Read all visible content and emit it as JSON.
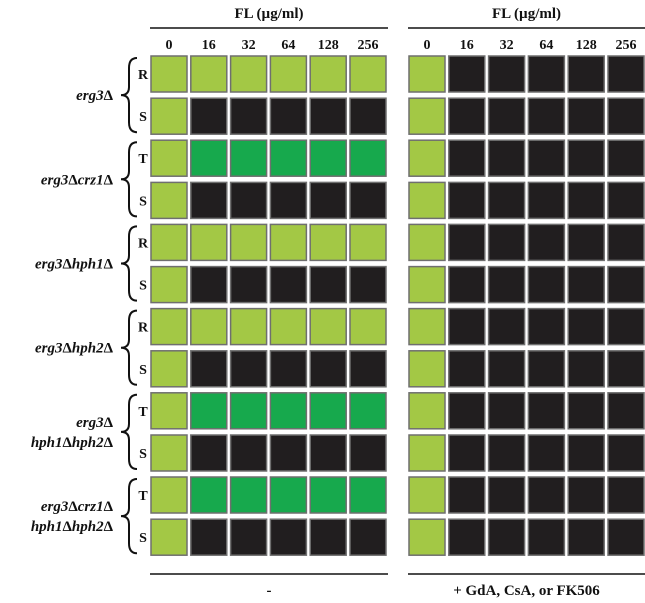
{
  "panels": [
    {
      "header": "FL (µg/ml)",
      "footer": "-"
    },
    {
      "header": "FL (µg/ml)",
      "footer": "+ GdA, CsA, or FK506"
    }
  ],
  "concentrations": [
    "0",
    "16",
    "32",
    "64",
    "128",
    "256"
  ],
  "colors": {
    "light_green": "#a3c845",
    "bright_green": "#17a94d",
    "black": "#211e1f",
    "border": "#6f6f6f"
  },
  "strains": [
    {
      "lines": [
        [
          {
            "t": "erg3",
            "i": true
          },
          {
            "t": "Δ",
            "i": false
          }
        ]
      ],
      "rows": [
        {
          "label": "R",
          "left": [
            "light_green",
            "light_green",
            "light_green",
            "light_green",
            "light_green",
            "light_green"
          ],
          "right": [
            "light_green",
            "black",
            "black",
            "black",
            "black",
            "black"
          ]
        },
        {
          "label": "S",
          "left": [
            "light_green",
            "black",
            "black",
            "black",
            "black",
            "black"
          ],
          "right": [
            "light_green",
            "black",
            "black",
            "black",
            "black",
            "black"
          ]
        }
      ]
    },
    {
      "lines": [
        [
          {
            "t": "erg3",
            "i": true
          },
          {
            "t": "Δ",
            "i": false
          },
          {
            "t": "crz1",
            "i": true
          },
          {
            "t": "Δ",
            "i": false
          }
        ]
      ],
      "rows": [
        {
          "label": "T",
          "left": [
            "light_green",
            "bright_green",
            "bright_green",
            "bright_green",
            "bright_green",
            "bright_green"
          ],
          "right": [
            "light_green",
            "black",
            "black",
            "black",
            "black",
            "black"
          ]
        },
        {
          "label": "S",
          "left": [
            "light_green",
            "black",
            "black",
            "black",
            "black",
            "black"
          ],
          "right": [
            "light_green",
            "black",
            "black",
            "black",
            "black",
            "black"
          ]
        }
      ]
    },
    {
      "lines": [
        [
          {
            "t": "erg3",
            "i": true
          },
          {
            "t": "Δ",
            "i": false
          },
          {
            "t": "hph1",
            "i": true
          },
          {
            "t": "Δ",
            "i": false
          }
        ]
      ],
      "rows": [
        {
          "label": "R",
          "left": [
            "light_green",
            "light_green",
            "light_green",
            "light_green",
            "light_green",
            "light_green"
          ],
          "right": [
            "light_green",
            "black",
            "black",
            "black",
            "black",
            "black"
          ]
        },
        {
          "label": "S",
          "left": [
            "light_green",
            "black",
            "black",
            "black",
            "black",
            "black"
          ],
          "right": [
            "light_green",
            "black",
            "black",
            "black",
            "black",
            "black"
          ]
        }
      ]
    },
    {
      "lines": [
        [
          {
            "t": "erg3",
            "i": true
          },
          {
            "t": "Δ",
            "i": false
          },
          {
            "t": "hph2",
            "i": true
          },
          {
            "t": "Δ",
            "i": false
          }
        ]
      ],
      "rows": [
        {
          "label": "R",
          "left": [
            "light_green",
            "light_green",
            "light_green",
            "light_green",
            "light_green",
            "light_green"
          ],
          "right": [
            "light_green",
            "black",
            "black",
            "black",
            "black",
            "black"
          ]
        },
        {
          "label": "S",
          "left": [
            "light_green",
            "black",
            "black",
            "black",
            "black",
            "black"
          ],
          "right": [
            "light_green",
            "black",
            "black",
            "black",
            "black",
            "black"
          ]
        }
      ]
    },
    {
      "lines": [
        [
          {
            "t": "erg3",
            "i": true
          },
          {
            "t": "Δ",
            "i": false
          }
        ],
        [
          {
            "t": "hph1",
            "i": true
          },
          {
            "t": "Δ",
            "i": false
          },
          {
            "t": "hph2",
            "i": true
          },
          {
            "t": "Δ",
            "i": false
          }
        ]
      ],
      "rows": [
        {
          "label": "T",
          "left": [
            "light_green",
            "bright_green",
            "bright_green",
            "bright_green",
            "bright_green",
            "bright_green"
          ],
          "right": [
            "light_green",
            "black",
            "black",
            "black",
            "black",
            "black"
          ]
        },
        {
          "label": "S",
          "left": [
            "light_green",
            "black",
            "black",
            "black",
            "black",
            "black"
          ],
          "right": [
            "light_green",
            "black",
            "black",
            "black",
            "black",
            "black"
          ]
        }
      ]
    },
    {
      "lines": [
        [
          {
            "t": "erg3",
            "i": true
          },
          {
            "t": "Δ",
            "i": false
          },
          {
            "t": "crz1",
            "i": true
          },
          {
            "t": "Δ",
            "i": false
          }
        ],
        [
          {
            "t": "hph1",
            "i": true
          },
          {
            "t": "Δ",
            "i": false
          },
          {
            "t": "hph2",
            "i": true
          },
          {
            "t": "Δ",
            "i": false
          }
        ]
      ],
      "rows": [
        {
          "label": "T",
          "left": [
            "light_green",
            "bright_green",
            "bright_green",
            "bright_green",
            "bright_green",
            "bright_green"
          ],
          "right": [
            "light_green",
            "black",
            "black",
            "black",
            "black",
            "black"
          ]
        },
        {
          "label": "S",
          "left": [
            "light_green",
            "black",
            "black",
            "black",
            "black",
            "black"
          ],
          "right": [
            "light_green",
            "black",
            "black",
            "black",
            "black",
            "black"
          ]
        }
      ]
    }
  ]
}
